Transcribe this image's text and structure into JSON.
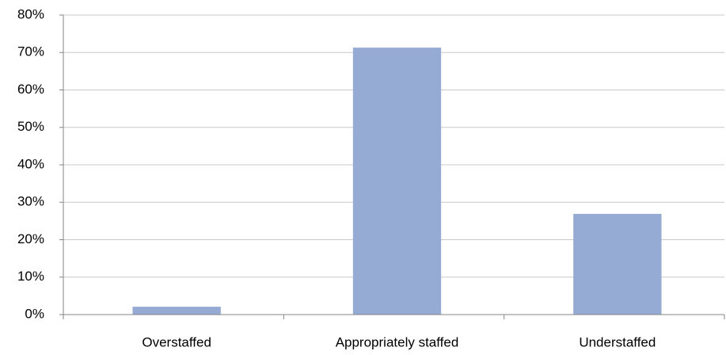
{
  "chart_data": {
    "type": "bar",
    "categories": [
      "Overstaffed",
      "Appropriately staffed",
      "Understaffed"
    ],
    "values": [
      2.1,
      71.3,
      26.9
    ],
    "color": "#95abd3",
    "ylim": [
      0,
      80
    ],
    "yticks": [
      {
        "value": 0,
        "label": "0%"
      },
      {
        "value": 10,
        "label": "10%"
      },
      {
        "value": 20,
        "label": "20%"
      },
      {
        "value": 30,
        "label": "30%"
      },
      {
        "value": 40,
        "label": "40%"
      },
      {
        "value": 50,
        "label": "50%"
      },
      {
        "value": 60,
        "label": "60%"
      },
      {
        "value": 70,
        "label": "70%"
      },
      {
        "value": 80,
        "label": "80%"
      }
    ],
    "grid": true
  }
}
